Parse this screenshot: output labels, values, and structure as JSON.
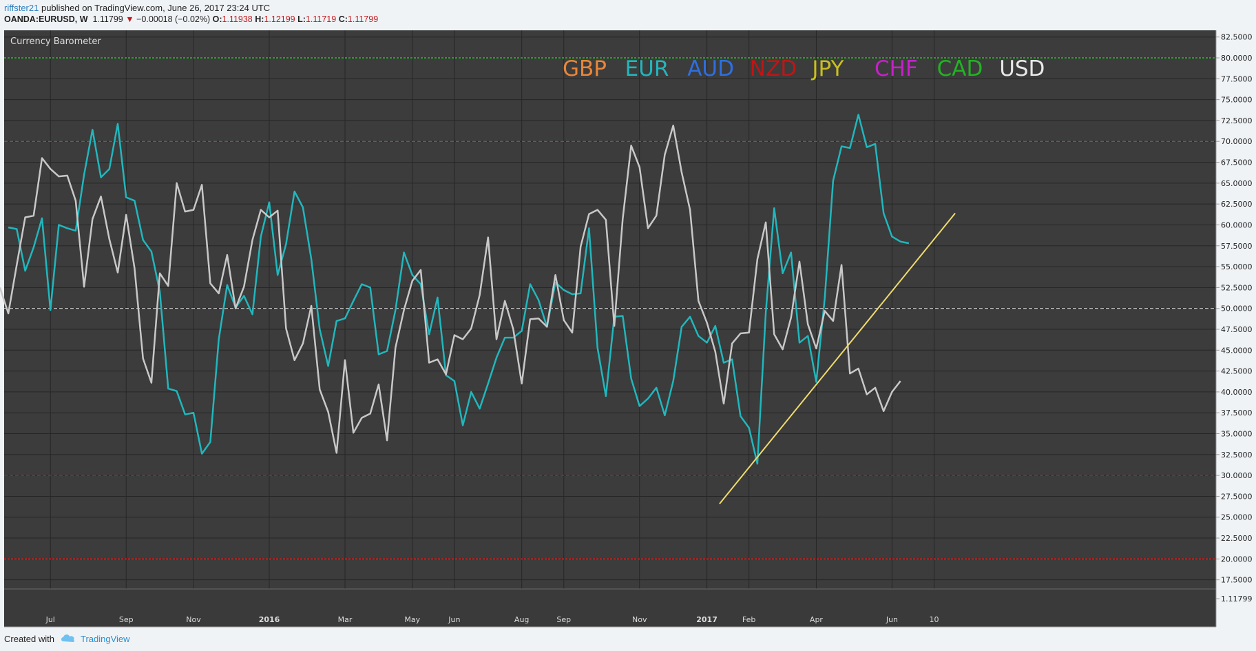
{
  "header": {
    "author": "riffster21",
    "published_text": "published on TradingView.com, June 26, 2017 23:24 UTC",
    "symbol": "OANDA:EURUSD, W",
    "last": "1.11799",
    "change": "−0.00018 (−0.02%)",
    "change_icon": "triangle-down-icon",
    "o_label": "O:",
    "o_value": "1.11938",
    "h_label": "H:",
    "h_value": "1.12199",
    "l_label": "L:",
    "l_value": "1.11719",
    "c_label": "C:",
    "c_value": "1.11799"
  },
  "footer": {
    "created_with": "Created with",
    "brand": "TradingView",
    "logo_icon": "tradingview-cloud-icon"
  },
  "colors": {
    "pane_bg": "#3c3c3c",
    "grid": "#262626",
    "eur": "#21b7bd",
    "usd": "#c8c8c8",
    "trendline": "#f0dc6e",
    "level_green": "#2e9c2e",
    "level_red": "#cc1b1b",
    "level_white": "#dddddd"
  },
  "chart_data": {
    "type": "line",
    "title": "Currency Barometer",
    "legend_placement": "top-center",
    "legend": [
      {
        "label": "GBP",
        "color": "#e8863a"
      },
      {
        "label": "EUR",
        "color": "#21b7bd"
      },
      {
        "label": "AUD",
        "color": "#2e6fe0"
      },
      {
        "label": "NZD",
        "color": "#c01515"
      },
      {
        "label": "JPY",
        "color": "#c9bf1e"
      },
      {
        "label": "CHF",
        "color": "#c81fcb"
      },
      {
        "label": "CAD",
        "color": "#22b322"
      },
      {
        "label": "USD",
        "color": "#e8e8e8"
      }
    ],
    "ylim": [
      16.4,
      83.3
    ],
    "y_ticks": [
      "82.5000",
      "80.0000",
      "77.5000",
      "75.0000",
      "72.5000",
      "70.0000",
      "67.5000",
      "65.0000",
      "62.5000",
      "60.0000",
      "57.5000",
      "55.0000",
      "52.5000",
      "50.0000",
      "47.5000",
      "45.0000",
      "42.5000",
      "40.0000",
      "37.5000",
      "35.0000",
      "32.5000",
      "30.0000",
      "27.5000",
      "25.0000",
      "22.5000",
      "20.0000",
      "17.5000"
    ],
    "price_tick": "1.11799",
    "x_week_count": 144,
    "x_ticks": [
      {
        "label": "Jul",
        "week": 5.5,
        "bold": false
      },
      {
        "label": "Sep",
        "week": 14.5,
        "bold": false
      },
      {
        "label": "Nov",
        "week": 22.5,
        "bold": false
      },
      {
        "label": "2016",
        "week": 31.5,
        "bold": true
      },
      {
        "label": "Mar",
        "week": 40.5,
        "bold": false
      },
      {
        "label": "May",
        "week": 48.5,
        "bold": false
      },
      {
        "label": "Jun",
        "week": 53.5,
        "bold": false
      },
      {
        "label": "Aug",
        "week": 61.5,
        "bold": false
      },
      {
        "label": "Sep",
        "week": 66.5,
        "bold": false
      },
      {
        "label": "Nov",
        "week": 75.5,
        "bold": false
      },
      {
        "label": "2017",
        "week": 83.5,
        "bold": true
      },
      {
        "label": "Feb",
        "week": 88.5,
        "bold": false
      },
      {
        "label": "Apr",
        "week": 96.5,
        "bold": false
      },
      {
        "label": "Jun",
        "week": 105.5,
        "bold": false
      },
      {
        "label": "10",
        "week": 110.5,
        "bold": false
      }
    ],
    "levels": [
      {
        "value": 80,
        "color": "#2e9c2e",
        "style": "dotted",
        "width": 2
      },
      {
        "value": 70,
        "color": "#2e9c2e",
        "style": "dashed",
        "width": 1
      },
      {
        "value": 50,
        "color": "#dddddd",
        "style": "dashed",
        "width": 1
      },
      {
        "value": 30,
        "color": "#a03030",
        "style": "dashed",
        "width": 1
      },
      {
        "value": 20,
        "color": "#cc1b1b",
        "style": "dotted",
        "width": 2
      }
    ],
    "series": [
      {
        "name": "EUR",
        "color": "#21b7bd",
        "start_week": 0.5,
        "values": [
          59.7,
          59.5,
          54.5,
          57.3,
          60.8,
          49.8,
          60.0,
          59.6,
          59.3,
          66.0,
          71.4,
          65.7,
          66.7,
          72.1,
          63.3,
          62.9,
          58.2,
          56.8,
          52.0,
          40.4,
          40.1,
          37.3,
          37.5,
          32.6,
          34.0,
          46.3,
          52.8,
          50.1,
          51.5,
          49.3,
          58.6,
          62.7,
          54.0,
          57.7,
          64.0,
          62.1,
          55.9,
          47.5,
          43.1,
          48.5,
          48.8,
          50.9,
          52.9,
          52.5,
          44.5,
          44.9,
          49.8,
          56.7,
          54.0,
          52.9,
          46.9,
          51.3,
          42.0,
          41.3,
          36.0,
          40.0,
          38.0,
          41.0,
          44.1,
          46.5,
          46.5,
          47.3,
          52.9,
          51.0,
          47.8,
          53.1,
          52.2,
          51.7,
          51.8,
          59.6,
          45.3,
          39.5,
          49.0,
          49.1,
          41.6,
          38.3,
          39.2,
          40.5,
          37.2,
          41.3,
          47.8,
          49.0,
          46.7,
          45.9,
          47.9,
          43.5,
          43.9,
          37.1,
          35.7,
          31.4,
          49.5,
          62.0,
          54.2,
          56.7,
          45.9,
          46.7,
          41.2,
          51.2,
          65.3,
          69.4,
          69.2,
          73.2,
          69.3,
          69.7,
          61.4,
          58.6,
          58.0,
          57.8
        ]
      },
      {
        "name": "USD",
        "color": "#c8c8c8",
        "start_week": -0.5,
        "values": [
          52.5,
          49.4,
          55.2,
          60.9,
          61.1,
          68.0,
          66.7,
          65.8,
          65.9,
          62.9,
          52.6,
          60.7,
          63.4,
          58.3,
          54.3,
          61.2,
          54.8,
          44.0,
          41.1,
          54.2,
          52.7,
          65.0,
          61.6,
          61.8,
          64.8,
          53.0,
          51.8,
          56.4,
          50.0,
          52.6,
          58.2,
          61.8,
          60.9,
          61.7,
          47.6,
          43.8,
          45.8,
          50.3,
          40.3,
          37.6,
          32.7,
          43.8,
          35.1,
          36.9,
          37.4,
          40.9,
          34.2,
          45.3,
          49.8,
          53.3,
          54.6,
          43.5,
          43.9,
          42.1,
          46.8,
          46.3,
          47.6,
          51.6,
          58.5,
          46.3,
          50.9,
          47.5,
          41.0,
          48.7,
          48.8,
          47.8,
          54.0,
          48.6,
          47.1,
          57.4,
          61.3,
          61.8,
          60.6,
          47.9,
          60.7,
          69.5,
          66.9,
          59.6,
          61.1,
          68.4,
          71.9,
          66.3,
          61.8,
          50.9,
          48.3,
          44.8,
          38.6,
          45.8,
          47.0,
          47.1,
          55.9,
          60.3,
          46.9,
          45.1,
          48.9,
          55.6,
          48.1,
          45.2,
          49.7,
          48.5,
          55.2,
          42.2,
          42.8,
          39.7,
          40.5,
          37.7,
          40.0,
          41.3
        ]
      }
    ],
    "trendline": {
      "week_start": 85.0,
      "value_start": 26.6,
      "week_end": 113.0,
      "value_end": 61.4
    }
  }
}
